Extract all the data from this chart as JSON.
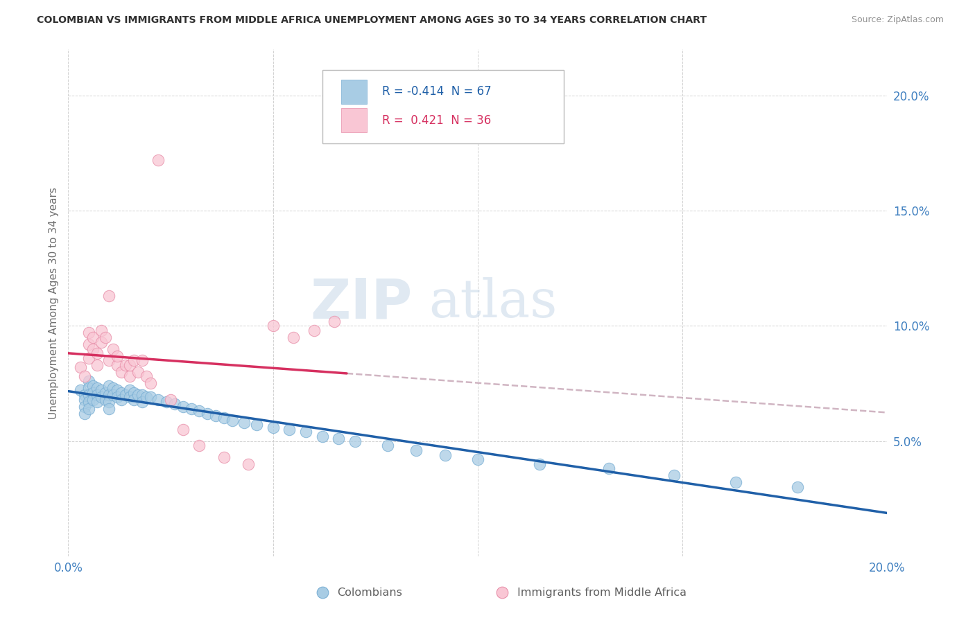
{
  "title": "COLOMBIAN VS IMMIGRANTS FROM MIDDLE AFRICA UNEMPLOYMENT AMONG AGES 30 TO 34 YEARS CORRELATION CHART",
  "source": "Source: ZipAtlas.com",
  "ylabel": "Unemployment Among Ages 30 to 34 years",
  "xlim": [
    0.0,
    0.2
  ],
  "ylim": [
    0.0,
    0.22
  ],
  "ytick_vals": [
    0.05,
    0.1,
    0.15,
    0.2
  ],
  "ytick_labels": [
    "5.0%",
    "10.0%",
    "15.0%",
    "20.0%"
  ],
  "xtick_vals": [
    0.0,
    0.05,
    0.1,
    0.15,
    0.2
  ],
  "xtick_labels": [
    "0.0%",
    "",
    "",
    "",
    "20.0%"
  ],
  "color_blue": "#a8cce4",
  "color_blue_edge": "#7aafd4",
  "color_pink": "#f9c6d4",
  "color_pink_edge": "#e890aa",
  "color_blue_line": "#2060a8",
  "color_pink_line": "#d63060",
  "color_pink_dashed": "#c8a8b8",
  "watermark_color": "#c8d8e8",
  "r1": "-0.414",
  "n1": "67",
  "r2": "0.421",
  "n2": "36",
  "legend_blue_text_color": "#2060a8",
  "legend_pink_text_color": "#d63060",
  "tick_color": "#4080c0",
  "ylabel_color": "#707070",
  "title_color": "#303030",
  "source_color": "#909090",
  "bottom_label_color": "#606060",
  "colombians_x": [
    0.003,
    0.004,
    0.004,
    0.004,
    0.004,
    0.005,
    0.005,
    0.005,
    0.005,
    0.005,
    0.006,
    0.006,
    0.006,
    0.007,
    0.007,
    0.007,
    0.008,
    0.008,
    0.009,
    0.009,
    0.01,
    0.01,
    0.01,
    0.01,
    0.011,
    0.011,
    0.012,
    0.012,
    0.013,
    0.013,
    0.014,
    0.015,
    0.015,
    0.016,
    0.016,
    0.017,
    0.018,
    0.018,
    0.019,
    0.02,
    0.022,
    0.024,
    0.026,
    0.028,
    0.03,
    0.032,
    0.034,
    0.036,
    0.038,
    0.04,
    0.043,
    0.046,
    0.05,
    0.054,
    0.058,
    0.062,
    0.066,
    0.07,
    0.078,
    0.085,
    0.092,
    0.1,
    0.115,
    0.132,
    0.148,
    0.163,
    0.178
  ],
  "colombians_y": [
    0.072,
    0.07,
    0.068,
    0.065,
    0.062,
    0.076,
    0.073,
    0.07,
    0.067,
    0.064,
    0.074,
    0.071,
    0.068,
    0.073,
    0.07,
    0.067,
    0.072,
    0.069,
    0.071,
    0.068,
    0.074,
    0.07,
    0.067,
    0.064,
    0.073,
    0.07,
    0.072,
    0.069,
    0.071,
    0.068,
    0.07,
    0.072,
    0.069,
    0.071,
    0.068,
    0.07,
    0.07,
    0.067,
    0.069,
    0.069,
    0.068,
    0.067,
    0.066,
    0.065,
    0.064,
    0.063,
    0.062,
    0.061,
    0.06,
    0.059,
    0.058,
    0.057,
    0.056,
    0.055,
    0.054,
    0.052,
    0.051,
    0.05,
    0.048,
    0.046,
    0.044,
    0.042,
    0.04,
    0.038,
    0.035,
    0.032,
    0.03
  ],
  "midafrica_x": [
    0.003,
    0.004,
    0.005,
    0.005,
    0.005,
    0.006,
    0.006,
    0.007,
    0.007,
    0.008,
    0.008,
    0.009,
    0.01,
    0.01,
    0.011,
    0.012,
    0.012,
    0.013,
    0.014,
    0.015,
    0.015,
    0.016,
    0.017,
    0.018,
    0.019,
    0.02,
    0.022,
    0.025,
    0.028,
    0.032,
    0.038,
    0.044,
    0.05,
    0.055,
    0.06,
    0.065
  ],
  "midafrica_y": [
    0.082,
    0.078,
    0.086,
    0.092,
    0.097,
    0.09,
    0.095,
    0.088,
    0.083,
    0.093,
    0.098,
    0.095,
    0.113,
    0.085,
    0.09,
    0.083,
    0.087,
    0.08,
    0.083,
    0.078,
    0.083,
    0.085,
    0.08,
    0.085,
    0.078,
    0.075,
    0.172,
    0.068,
    0.055,
    0.048,
    0.043,
    0.04,
    0.1,
    0.095,
    0.098,
    0.102
  ],
  "figsize": [
    14.06,
    8.92
  ],
  "dpi": 100
}
